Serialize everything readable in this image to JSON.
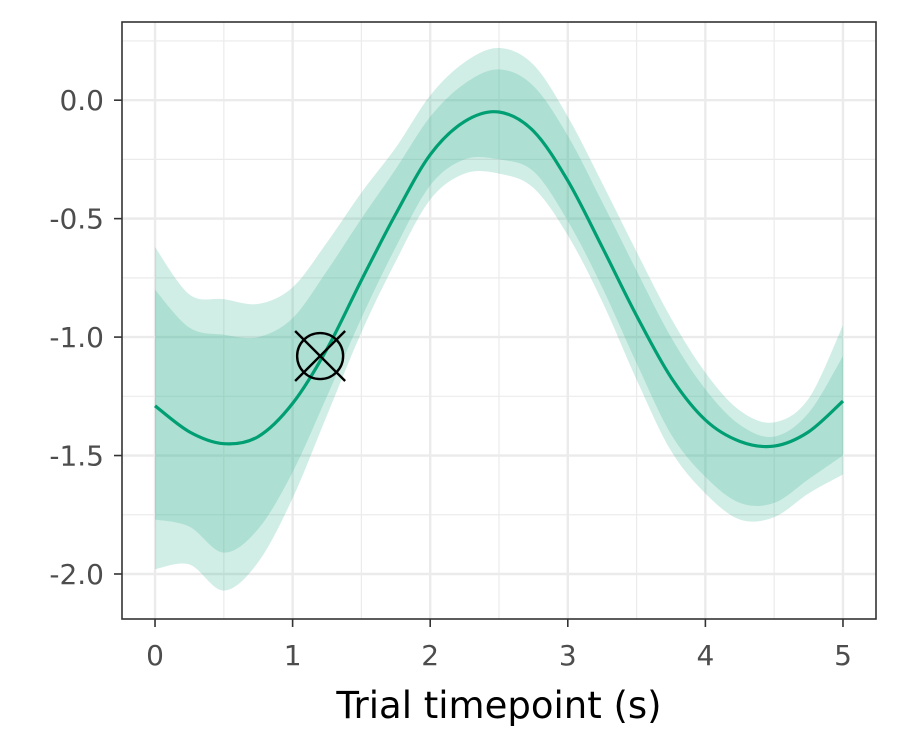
{
  "chart_data": {
    "type": "line",
    "title": "",
    "xlabel": "Trial timepoint (s)",
    "ylabel": "",
    "xlim": [
      -0.24,
      5.24
    ],
    "ylim": [
      -2.19,
      0.33
    ],
    "x_ticks": [
      0,
      1,
      2,
      3,
      4,
      5
    ],
    "x_tick_labels": [
      "0",
      "1",
      "2",
      "3",
      "4",
      "5"
    ],
    "y_ticks": [
      0.0,
      -0.5,
      -1.0,
      -1.5,
      -2.0
    ],
    "y_tick_labels": [
      "0.0",
      "-0.5",
      "-1.0",
      "-1.5",
      "-2.0"
    ],
    "grid": true,
    "line_color": "#009E73",
    "band_color": "#2FB08D",
    "series": [
      {
        "x": [
          0,
          0.25,
          0.5,
          0.75,
          1.0,
          1.25,
          1.5,
          1.75,
          2.0,
          2.25,
          2.5,
          2.75,
          3.0,
          3.25,
          3.5,
          3.75,
          4.0,
          4.25,
          4.5,
          4.75,
          5.0
        ],
        "y": [
          -1.29,
          -1.4,
          -1.45,
          -1.42,
          -1.28,
          -1.05,
          -0.76,
          -0.48,
          -0.23,
          -0.09,
          -0.05,
          -0.13,
          -0.34,
          -0.62,
          -0.91,
          -1.17,
          -1.35,
          -1.44,
          -1.46,
          -1.4,
          -1.27
        ]
      }
    ],
    "bands": [
      {
        "level": "outer",
        "lower": [
          -1.98,
          -1.96,
          -2.07,
          -1.95,
          -1.68,
          -1.33,
          -0.98,
          -0.68,
          -0.42,
          -0.31,
          -0.31,
          -0.37,
          -0.57,
          -0.85,
          -1.18,
          -1.48,
          -1.66,
          -1.77,
          -1.76,
          -1.66,
          -1.58
        ],
        "upper": [
          -0.62,
          -0.82,
          -0.84,
          -0.86,
          -0.79,
          -0.6,
          -0.39,
          -0.2,
          0.02,
          0.16,
          0.22,
          0.15,
          -0.07,
          -0.35,
          -0.64,
          -0.92,
          -1.15,
          -1.31,
          -1.36,
          -1.26,
          -0.95
        ]
      },
      {
        "level": "inner",
        "lower": [
          -1.77,
          -1.8,
          -1.91,
          -1.81,
          -1.57,
          -1.25,
          -0.92,
          -0.62,
          -0.36,
          -0.25,
          -0.25,
          -0.3,
          -0.51,
          -0.79,
          -1.11,
          -1.41,
          -1.59,
          -1.7,
          -1.7,
          -1.6,
          -1.5
        ],
        "upper": [
          -0.8,
          -0.96,
          -0.99,
          -1.0,
          -0.92,
          -0.72,
          -0.5,
          -0.29,
          -0.07,
          0.07,
          0.13,
          0.06,
          -0.15,
          -0.43,
          -0.72,
          -1.0,
          -1.22,
          -1.37,
          -1.42,
          -1.32,
          -1.08
        ]
      }
    ],
    "marker": {
      "type": "circle-cross",
      "x": 1.2,
      "y": -1.08,
      "color": "#000000"
    }
  }
}
